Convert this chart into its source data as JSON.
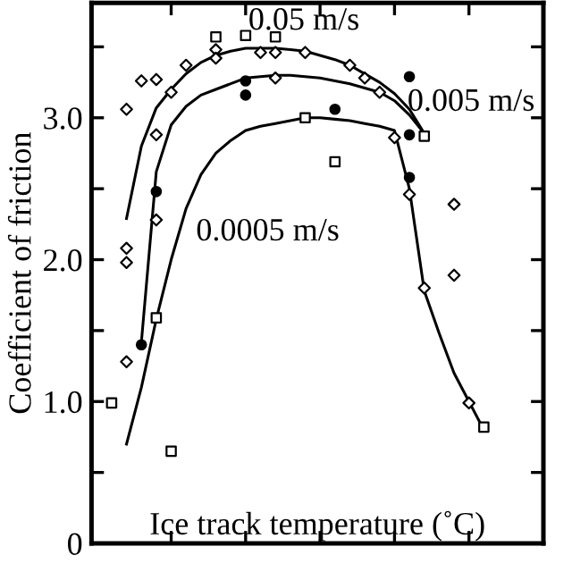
{
  "chart_data": {
    "type": "scatter",
    "xlabel": "Ice track temperature (˚C)",
    "ylabel": "Coefficient of friction",
    "categories": [
      null,
      null,
      null,
      null,
      null,
      null,
      null,
      null,
      null,
      null,
      null,
      null,
      null,
      null,
      null,
      null,
      null,
      null,
      null,
      null,
      null,
      null,
      null,
      null,
      null,
      null,
      null
    ],
    "ylim": [
      0,
      3.81
    ],
    "yticks": [
      {
        "value": 0,
        "label": "0"
      },
      {
        "value": 0.5,
        "label": null
      },
      {
        "value": 1.0,
        "label": "1.0"
      },
      {
        "value": 1.5,
        "label": null
      },
      {
        "value": 2.0,
        "label": "2.0"
      },
      {
        "value": 2.5,
        "label": null
      },
      {
        "value": 3.0,
        "label": "3.0"
      },
      {
        "value": 3.5,
        "label": null
      }
    ],
    "grid": false,
    "marker": "diamond",
    "color": "#000000",
    "series": [
      {
        "values": [
          null,
          null,
          3.06,
          3.26,
          3.27,
          3.18,
          3.37,
          null,
          3.48,
          null,
          null,
          3.46,
          3.46,
          null,
          3.46,
          null,
          null,
          3.37,
          3.28,
          3.18,
          2.86,
          2.46,
          1.8,
          null,
          2.39,
          0.99,
          null
        ]
      },
      {
        "values": [
          null,
          null,
          2.08,
          null,
          2.88,
          null,
          null,
          null,
          3.42,
          null,
          null,
          null,
          3.28,
          null,
          null,
          null,
          null,
          null,
          null,
          null,
          null,
          null,
          null,
          null,
          1.89,
          null,
          null
        ]
      },
      {
        "values": [
          null,
          null,
          1.98,
          null,
          2.28,
          null,
          null,
          null,
          null,
          null,
          null,
          null,
          null,
          null,
          null,
          null,
          null,
          null,
          null,
          null,
          null,
          null,
          null,
          null,
          null,
          null,
          null
        ]
      },
      {
        "values": [
          null,
          null,
          1.28,
          null,
          null,
          null,
          null,
          null,
          null,
          null,
          null,
          null,
          null,
          null,
          null,
          null,
          null,
          null,
          null,
          null,
          null,
          null,
          null,
          null,
          null,
          null,
          null
        ]
      },
      {
        "marker": "square",
        "values": [
          null,
          0.99,
          null,
          null,
          1.59,
          0.65,
          null,
          null,
          3.57,
          null,
          3.58,
          null,
          3.57,
          null,
          3.0,
          null,
          2.69,
          null,
          null,
          null,
          null,
          null,
          2.87,
          null,
          null,
          null,
          0.82
        ]
      },
      {
        "marker": "circle",
        "values": [
          null,
          null,
          null,
          1.4,
          2.48,
          null,
          null,
          null,
          null,
          null,
          3.26,
          null,
          null,
          null,
          null,
          null,
          3.06,
          null,
          null,
          null,
          null,
          3.29,
          null,
          null,
          null,
          null,
          null
        ]
      },
      {
        "marker": "circle",
        "values": [
          null,
          null,
          null,
          null,
          null,
          null,
          null,
          null,
          null,
          null,
          3.16,
          null,
          null,
          null,
          null,
          null,
          null,
          null,
          null,
          null,
          null,
          2.88,
          null,
          null,
          null,
          null,
          null
        ]
      },
      {
        "marker": "circle",
        "values": [
          null,
          null,
          null,
          null,
          null,
          null,
          null,
          null,
          null,
          null,
          null,
          null,
          null,
          null,
          null,
          null,
          null,
          null,
          null,
          null,
          null,
          2.58,
          null,
          null,
          null,
          null,
          null
        ]
      },
      {
        "type": "line",
        "marker": "none",
        "line_style": "solid",
        "values": [
          null,
          null,
          2.29,
          2.8,
          3.07,
          3.2,
          3.31,
          3.39,
          3.44,
          3.47,
          3.49,
          3.49,
          3.49,
          3.48,
          3.47,
          3.44,
          3.41,
          3.37,
          3.31,
          3.25,
          3.17,
          3.06,
          2.89,
          null,
          null,
          null,
          null
        ]
      },
      {
        "type": "line",
        "marker": "none",
        "line_style": "solid",
        "values": [
          null,
          null,
          null,
          1.42,
          2.62,
          2.95,
          3.08,
          3.16,
          3.2,
          3.24,
          3.28,
          3.29,
          3.3,
          3.3,
          3.29,
          3.28,
          3.26,
          3.24,
          3.21,
          3.18,
          3.12,
          3.02,
          2.89,
          null,
          null,
          null,
          null
        ]
      },
      {
        "type": "line",
        "marker": "none",
        "line_style": "solid",
        "values": [
          null,
          null,
          0.7,
          1.1,
          1.58,
          2.0,
          2.36,
          2.6,
          2.75,
          2.84,
          2.91,
          2.94,
          2.96,
          2.98,
          3.0,
          3.0,
          2.99,
          2.98,
          2.96,
          2.94,
          2.91,
          2.5,
          1.78,
          1.48,
          1.2,
          1.0,
          0.8
        ]
      }
    ],
    "annotations": [
      "0.05 m/s",
      "0.005 m/s",
      "0.0005 m/s"
    ]
  }
}
